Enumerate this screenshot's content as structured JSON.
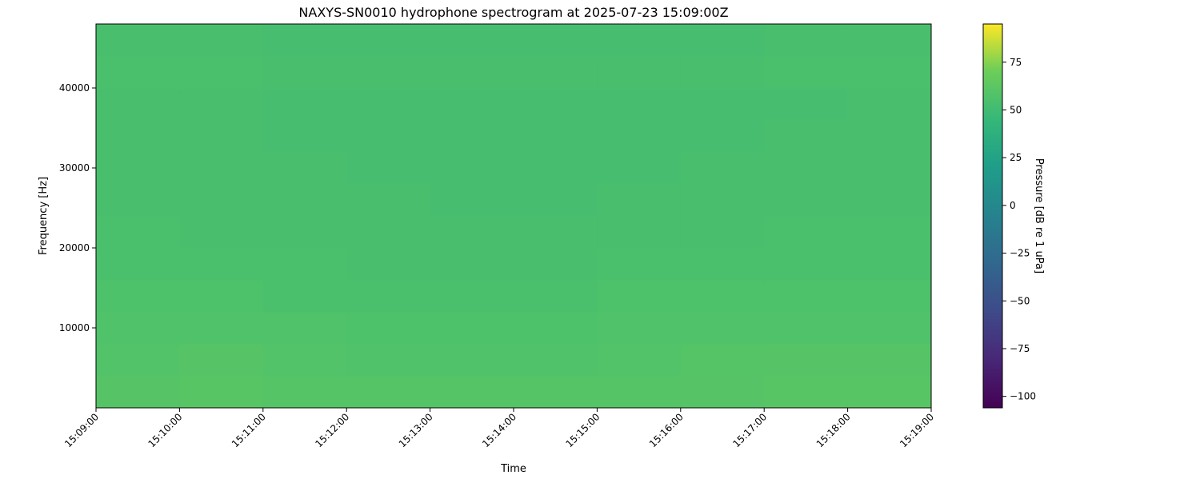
{
  "chart_data": {
    "type": "heatmap",
    "title": "NAXYS-SN0010 hydrophone spectrogram at 2025-07-23 15:09:00Z",
    "xlabel": "Time",
    "ylabel": "Frequency [Hz]",
    "colorbar_label": "Pressure [dB re 1 uPa]",
    "colormap": "viridis",
    "x_ticks": [
      "15:09:00",
      "15:10:00",
      "15:11:00",
      "15:12:00",
      "15:13:00",
      "15:14:00",
      "15:15:00",
      "15:16:00",
      "15:17:00",
      "15:18:00",
      "15:19:00"
    ],
    "y_ticks": [
      10000,
      20000,
      30000,
      40000
    ],
    "ylim": [
      0,
      48000
    ],
    "colorbar_ticks": [
      -100,
      -75,
      -50,
      -25,
      0,
      25,
      50,
      75
    ],
    "clim": [
      -106,
      95
    ],
    "time_bins": [
      "15:09",
      "15:10",
      "15:11",
      "15:12",
      "15:13",
      "15:14",
      "15:15",
      "15:16",
      "15:17",
      "15:18"
    ],
    "freq_bins_hz": [
      0,
      4000,
      8000,
      12000,
      16000,
      20000,
      24000,
      28000,
      32000,
      36000,
      40000,
      44000
    ],
    "values_db": [
      [
        60,
        61,
        59,
        59,
        59,
        59,
        59,
        60,
        61,
        61
      ],
      [
        58,
        60,
        58,
        57,
        57,
        57,
        58,
        59,
        60,
        60
      ],
      [
        57,
        57,
        57,
        56,
        56,
        56,
        57,
        57,
        57,
        57
      ],
      [
        56,
        56,
        55,
        55,
        55,
        55,
        56,
        56,
        56,
        56
      ],
      [
        55,
        55,
        55,
        54,
        54,
        54,
        55,
        55,
        55,
        55
      ],
      [
        55,
        54,
        54,
        54,
        54,
        54,
        54,
        54,
        55,
        55
      ],
      [
        54,
        54,
        54,
        54,
        53,
        53,
        54,
        54,
        54,
        54
      ],
      [
        54,
        54,
        54,
        53,
        53,
        53,
        53,
        54,
        54,
        54
      ],
      [
        54,
        54,
        53,
        53,
        53,
        53,
        53,
        53,
        54,
        54
      ],
      [
        54,
        54,
        53,
        53,
        53,
        53,
        53,
        53,
        53,
        54
      ],
      [
        55,
        55,
        54,
        54,
        54,
        54,
        54,
        54,
        55,
        55
      ],
      [
        54,
        54,
        53,
        53,
        53,
        53,
        53,
        53,
        54,
        54
      ]
    ]
  }
}
